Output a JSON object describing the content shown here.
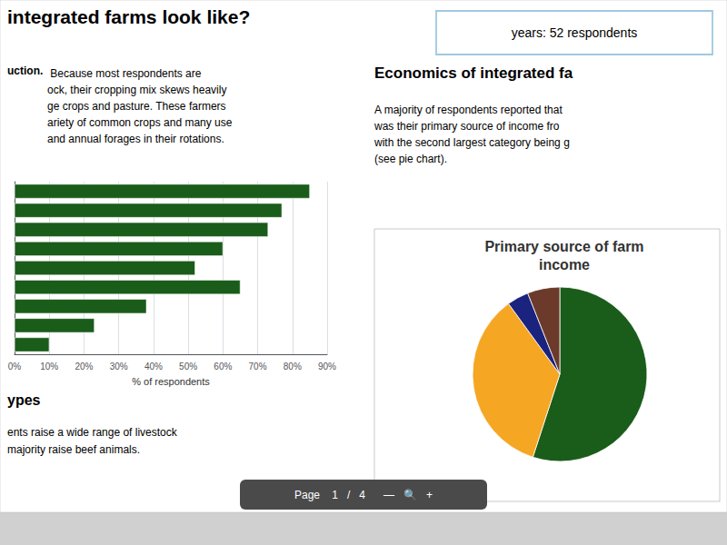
{
  "chart_data": [
    {
      "type": "bar",
      "orientation": "horizontal",
      "categories": [
        null,
        null,
        null,
        null,
        null,
        null,
        null,
        null,
        null
      ],
      "values": [
        85,
        77,
        73,
        60,
        52,
        65,
        38,
        23,
        10
      ],
      "color": "#1a5c1a",
      "xlabel": "% of respondents",
      "xlim": [
        0,
        90
      ],
      "xticks": [
        {
          "value": 0,
          "label": "0%"
        },
        {
          "value": 10,
          "label": "10%"
        },
        {
          "value": 20,
          "label": "20%"
        },
        {
          "value": 30,
          "label": "30%"
        },
        {
          "value": 40,
          "label": "40%"
        },
        {
          "value": 50,
          "label": "50%"
        },
        {
          "value": 60,
          "label": "60%"
        },
        {
          "value": 70,
          "label": "70%"
        },
        {
          "value": 80,
          "label": "80%"
        },
        {
          "value": 90,
          "label": "90%"
        }
      ],
      "grid": true,
      "tick_labels": "x",
      "annotations": [
        "integrated farms look like?",
        "uction.",
        " Because most respondents are\nock, their cropping mix skews heavily\nge crops and pasture. These farmers\nariety of common crops and many use\nand annual forages in their rotations.",
        "ypes",
        "ents raise a wide range of livestock\nmajority raise beef animals.",
        "years: 52 respondents",
        "Page    1   /   4      —   🔍   +"
      ]
    },
    {
      "type": "pie",
      "title": "Primary source of farm\nincome",
      "values": [
        55,
        35,
        4,
        6
      ],
      "colors": [
        "#1a5c1a",
        "#f5a623",
        "#1a237e",
        "#6b3a2a"
      ],
      "annotations": [
        "Economics of integrated fa",
        "A majority of respondents reported that\nwas their primary source of income fro\nwith the second largest category being g\n(see pie chart)."
      ]
    }
  ]
}
